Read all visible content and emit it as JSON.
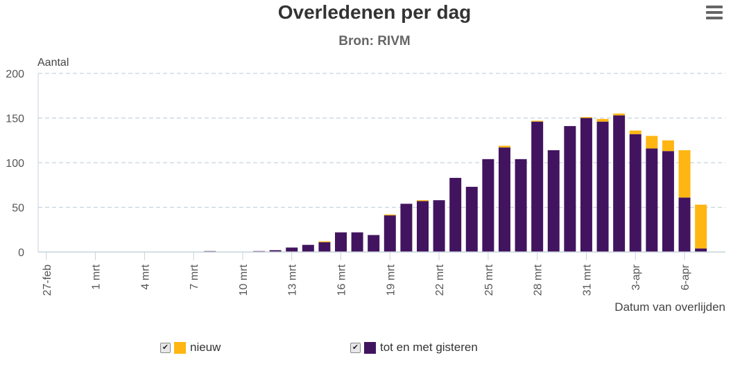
{
  "chart_data": {
    "type": "bar",
    "stacked": true,
    "title": "Overledenen per dag",
    "subtitle": "Bron: RIVM",
    "ylabel": "Aantal",
    "xlabel": "Datum van overlijden",
    "ylim": [
      0,
      200
    ],
    "yticks": [
      0,
      50,
      100,
      150,
      200
    ],
    "grid": true,
    "legend_position": "bottom-center",
    "tick_labels": [
      "27-feb",
      "1 mrt",
      "4 mrt",
      "7 mrt",
      "10 mrt",
      "13 mrt",
      "16 mrt",
      "19 mrt",
      "22 mrt",
      "25 mrt",
      "28 mrt",
      "31 mrt",
      "3-apr",
      "6-apr"
    ],
    "tick_day_index": [
      0,
      3,
      6,
      9,
      12,
      15,
      18,
      21,
      24,
      27,
      30,
      33,
      36,
      39
    ],
    "categories": [
      "27-feb",
      "28-feb",
      "29-feb",
      "1 mrt",
      "2 mrt",
      "3 mrt",
      "4 mrt",
      "5 mrt",
      "6 mrt",
      "7 mrt",
      "8 mrt",
      "9 mrt",
      "10 mrt",
      "11 mrt",
      "12 mrt",
      "13 mrt",
      "14 mrt",
      "15 mrt",
      "16 mrt",
      "17 mrt",
      "18 mrt",
      "19 mrt",
      "20 mrt",
      "21 mrt",
      "22 mrt",
      "23 mrt",
      "24 mrt",
      "25 mrt",
      "26 mrt",
      "27 mrt",
      "28 mrt",
      "29 mrt",
      "30 mrt",
      "31 mrt",
      "1-apr",
      "2-apr",
      "3-apr",
      "4-apr",
      "5-apr",
      "6-apr",
      "7-apr",
      "8-apr"
    ],
    "series": [
      {
        "name": "tot en met gisteren",
        "color": "#42145f",
        "values": [
          0,
          0,
          0,
          0,
          0,
          0,
          0,
          0,
          0,
          0,
          1,
          0,
          0,
          1,
          2,
          5,
          8,
          11,
          22,
          22,
          19,
          41,
          54,
          57,
          58,
          83,
          73,
          104,
          117,
          104,
          146,
          114,
          141,
          150,
          146,
          153,
          132,
          116,
          113,
          61,
          4,
          0
        ]
      },
      {
        "name": "nieuw",
        "color": "#ffb612",
        "values": [
          0,
          0,
          0,
          0,
          0,
          0,
          0,
          0,
          0,
          0,
          0,
          0,
          0,
          0,
          0,
          0,
          0,
          1,
          0,
          0,
          0,
          1,
          0,
          1,
          0,
          0,
          0,
          0,
          2,
          0,
          1,
          0,
          0,
          1,
          3,
          2,
          4,
          14,
          12,
          53,
          49,
          0
        ]
      }
    ]
  },
  "legend": [
    {
      "label": "nieuw",
      "color": "#ffb612",
      "checked": "✔"
    },
    {
      "label": "tot en met gisteren",
      "color": "#42145f",
      "checked": "✔"
    }
  ],
  "menu": {
    "icon": "hamburger-menu-icon"
  }
}
